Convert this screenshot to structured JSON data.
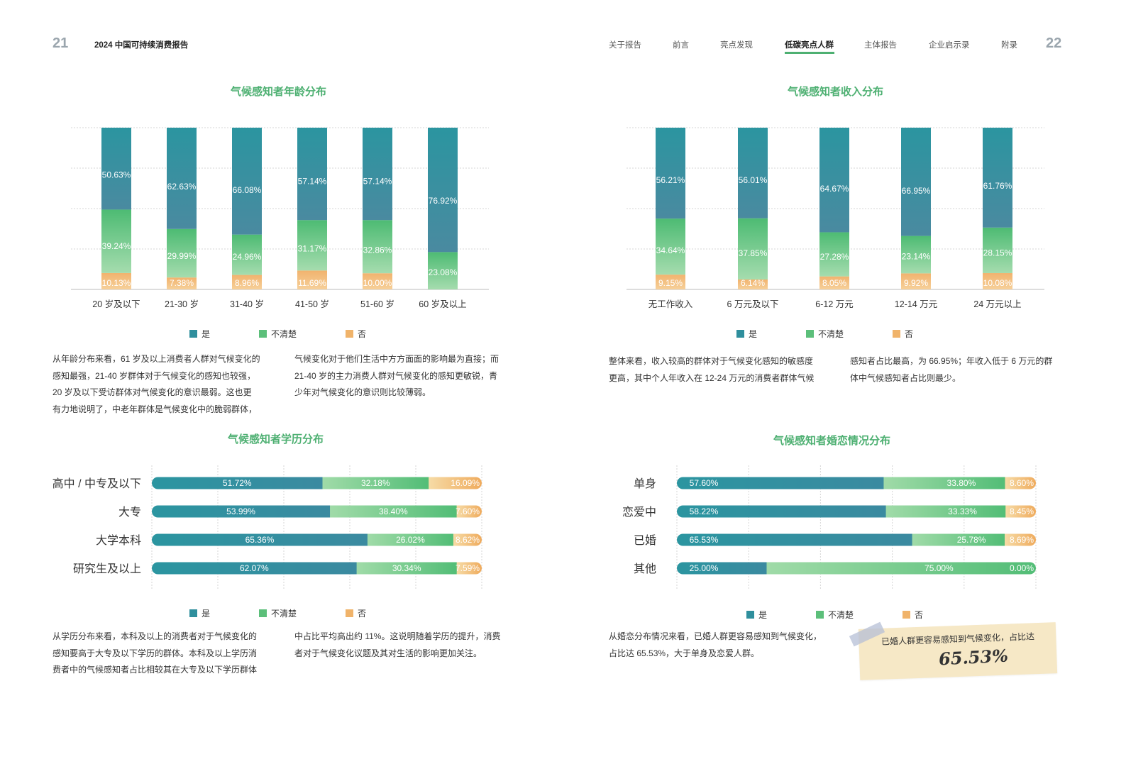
{
  "header": {
    "left_page_number": "21",
    "right_page_number": "22",
    "report_title": "2024 中国可持续消费报告",
    "nav": [
      "关于报告",
      "前言",
      "亮点发现",
      "低碳亮点人群",
      "主体报告",
      "企业启示录",
      "附录"
    ],
    "nav_active": "低碳亮点人群"
  },
  "colors": {
    "yes": "#2f8f9d",
    "unsure": "#5cbf7a",
    "no": "#f0b36a",
    "title": "#4eb072"
  },
  "legend": [
    "是",
    "不清楚",
    "否"
  ],
  "chart_data": [
    {
      "id": "age",
      "type": "bar",
      "stacked": true,
      "title": "气候感知者年龄分布",
      "categories": [
        "20 岁及以下",
        "21-30 岁",
        "31-40 岁",
        "41-50 岁",
        "51-60 岁",
        "60 岁及以上"
      ],
      "series": [
        {
          "name": "是",
          "values": [
            50.63,
            62.63,
            66.08,
            57.14,
            57.14,
            76.92
          ],
          "labels": [
            "50.63%",
            "62.63%",
            "66.08%",
            "57.14%",
            "57.14%",
            "76.92%"
          ]
        },
        {
          "name": "不清楚",
          "values": [
            39.24,
            29.99,
            24.96,
            31.17,
            32.86,
            23.08
          ],
          "labels": [
            "39.24%",
            "29.99%",
            "24.96%",
            "31.17%",
            "32.86%",
            "23.08%"
          ]
        },
        {
          "name": "否",
          "values": [
            10.13,
            7.38,
            8.96,
            11.69,
            10.0,
            0
          ],
          "labels": [
            "10.13%",
            "7.38%",
            "8.96%",
            "11.69%",
            "10.00%",
            ""
          ]
        }
      ],
      "ylim": [
        0,
        100
      ],
      "grid": true,
      "legend": "bottom"
    },
    {
      "id": "income",
      "type": "bar",
      "stacked": true,
      "title": "气候感知者收入分布",
      "categories": [
        "无工作收入",
        "6 万元及以下",
        "6-12 万元",
        "12-14 万元",
        "24 万元以上"
      ],
      "series": [
        {
          "name": "是",
          "values": [
            56.21,
            56.01,
            64.67,
            66.95,
            61.76
          ],
          "labels": [
            "56.21%",
            "56.01%",
            "64.67%",
            "66.95%",
            "61.76%"
          ]
        },
        {
          "name": "不清楚",
          "values": [
            34.64,
            37.85,
            27.28,
            23.14,
            28.15
          ],
          "labels": [
            "34.64%",
            "37.85%",
            "27.28%",
            "23.14%",
            "28.15%"
          ]
        },
        {
          "name": "否",
          "values": [
            9.15,
            6.14,
            8.05,
            9.92,
            10.08
          ],
          "labels": [
            "9.15%",
            "6.14%",
            "8.05%",
            "9.92%",
            "10.08%"
          ]
        }
      ],
      "ylim": [
        0,
        100
      ],
      "grid": true,
      "legend": "bottom"
    },
    {
      "id": "education",
      "type": "bar",
      "orientation": "horizontal",
      "stacked": true,
      "title": "气候感知者学历分布",
      "categories": [
        "高中 / 中专及以下",
        "大专",
        "大学本科",
        "研究生及以上"
      ],
      "series": [
        {
          "name": "是",
          "values": [
            51.72,
            53.99,
            65.36,
            62.07
          ],
          "labels": [
            "51.72%",
            "53.99%",
            "65.36%",
            "62.07%"
          ]
        },
        {
          "name": "不清楚",
          "values": [
            32.18,
            38.4,
            26.02,
            30.34
          ],
          "labels": [
            "32.18%",
            "38.40%",
            "26.02%",
            "30.34%"
          ]
        },
        {
          "name": "否",
          "values": [
            16.09,
            7.6,
            8.62,
            7.59
          ],
          "labels": [
            "16.09%",
            "7.60%",
            "8.62%",
            "7.59%"
          ]
        }
      ],
      "xlim": [
        0,
        100
      ],
      "grid": true,
      "legend": "bottom"
    },
    {
      "id": "marital",
      "type": "bar",
      "orientation": "horizontal",
      "stacked": true,
      "title": "气候感知者婚恋情况分布",
      "categories": [
        "单身",
        "恋爱中",
        "已婚",
        "其他"
      ],
      "series": [
        {
          "name": "是",
          "values": [
            57.6,
            58.22,
            65.53,
            25.0
          ],
          "labels": [
            "57.60%",
            "58.22%",
            "65.53%",
            "25.00%"
          ]
        },
        {
          "name": "不清楚",
          "values": [
            33.8,
            33.33,
            25.78,
            75.0
          ],
          "labels": [
            "33.80%",
            "33.33%",
            "25.78%",
            "75.00%"
          ]
        },
        {
          "name": "否",
          "values": [
            8.6,
            8.45,
            8.69,
            0.0
          ],
          "labels": [
            "8.60%",
            "8.45%",
            "8.69%",
            "0.00%"
          ]
        }
      ],
      "xlim": [
        0,
        100
      ],
      "grid": true,
      "legend": "bottom"
    }
  ],
  "paragraphs": {
    "age_left": [
      "从年龄分布来看，61 岁及以上消费者人群对气候变化的",
      "感知最强，21-40 岁群体对于气候变化的感知也较强，",
      "20 岁及以下受访群体对气候变化的意识最弱。这也更",
      "有力地说明了，中老年群体是气候变化中的脆弱群体，"
    ],
    "age_right": [
      "气候变化对于他们生活中方方面面的影响最为直接；而",
      "21-40 岁的主力消费人群对气候变化的感知更敏锐，青",
      "少年对气候变化的意识则比较薄弱。"
    ],
    "income_left": [
      "整体来看，收入较高的群体对于气候变化感知的敏感度",
      "更高，其中个人年收入在 12-24 万元的消费者群体气候"
    ],
    "income_right": [
      "感知者占比最高，为 66.95%；年收入低于 6 万元的群",
      "体中气候感知者占比则最少。"
    ],
    "edu_left": [
      "从学历分布来看，本科及以上的消费者对于气候变化的",
      "感知要高于大专及以下学历的群体。本科及以上学历消",
      "费者中的气候感知者占比相较其在大专及以下学历群体"
    ],
    "edu_right": [
      "中占比平均高出约 11%。这说明随着学历的提升，消费",
      "者对于气候变化议题及其对生活的影响更加关注。"
    ],
    "marital_left": [
      "从婚恋分布情况来看，已婚人群更容易感知到气候变化，",
      "占比达 65.53%，大于单身及恋爱人群。"
    ]
  },
  "note": {
    "text": "已婚人群更容易感知到气候变化，占比达",
    "value": "65.53%"
  }
}
